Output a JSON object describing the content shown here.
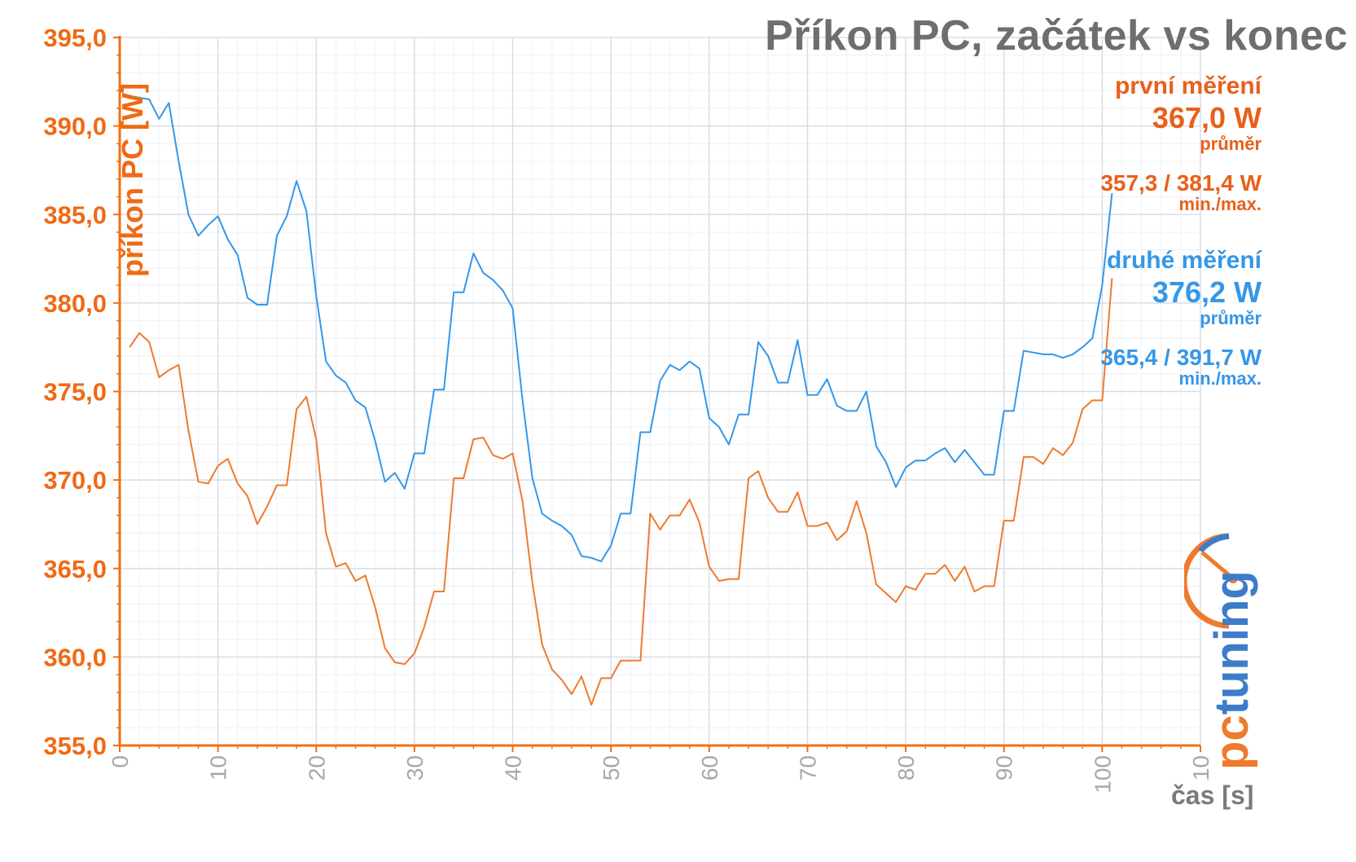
{
  "chart_data": {
    "type": "line",
    "title": "Příkon PC, začátek vs konec",
    "ylabel": "příkon PC [W]",
    "xlabel": "čas [s]",
    "xlim": [
      0,
      110
    ],
    "ylim": [
      355,
      395
    ],
    "x_ticks": [
      "0",
      "10",
      "20",
      "30",
      "40",
      "50",
      "60",
      "70",
      "80",
      "90",
      "100",
      "110"
    ],
    "y_ticks": [
      "355,0",
      "360,0",
      "365,0",
      "370,0",
      "375,0",
      "380,0",
      "385,0",
      "390,0",
      "395,0"
    ],
    "grid": true,
    "series": [
      {
        "name": "první měření",
        "color": "#ef7a2d",
        "values": [
          377.5,
          378.3,
          377.8,
          375.8,
          376.2,
          376.5,
          372.8,
          369.9,
          369.8,
          370.8,
          371.2,
          369.8,
          369.1,
          367.5,
          368.5,
          369.7,
          369.7,
          374.0,
          374.7,
          372.3,
          367.0,
          365.1,
          365.3,
          364.3,
          364.6,
          362.8,
          360.5,
          359.7,
          359.6,
          360.2,
          361.7,
          363.7,
          363.7,
          370.1,
          370.1,
          372.3,
          372.4,
          371.4,
          371.2,
          371.5,
          368.8,
          364.2,
          360.7,
          359.3,
          358.7,
          357.9,
          358.9,
          357.3,
          358.8,
          358.8,
          359.8,
          359.8,
          359.8,
          368.1,
          367.2,
          368.0,
          368.0,
          368.9,
          367.6,
          365.1,
          364.3,
          364.4,
          364.4,
          370.1,
          370.5,
          369.0,
          368.2,
          368.2,
          369.3,
          367.4,
          367.4,
          367.6,
          366.6,
          367.1,
          368.8,
          367.0,
          364.1,
          363.6,
          363.1,
          364.0,
          363.8,
          364.7,
          364.7,
          365.2,
          364.3,
          365.1,
          363.7,
          364.0,
          364.0,
          367.7,
          367.7,
          371.3,
          371.3,
          370.9,
          371.8,
          371.4,
          372.1,
          374.0,
          374.5,
          374.5,
          381.4
        ],
        "mean_label": "367,0 W",
        "mean_caption": "průměr",
        "minmax_label": "357,3 / 381,4 W",
        "minmax_caption": "min./max."
      },
      {
        "name": "druhé měření",
        "color": "#3597e8",
        "values": [
          391.7,
          391.6,
          391.5,
          390.4,
          391.3,
          388.0,
          385.0,
          383.8,
          384.4,
          384.9,
          383.6,
          382.7,
          380.3,
          379.9,
          379.9,
          383.8,
          384.9,
          386.9,
          385.2,
          380.4,
          376.7,
          375.9,
          375.5,
          374.5,
          374.1,
          372.2,
          369.9,
          370.4,
          369.5,
          371.5,
          371.5,
          375.1,
          375.1,
          380.6,
          380.6,
          382.8,
          381.7,
          381.3,
          380.7,
          379.7,
          374.5,
          370.1,
          368.1,
          367.7,
          367.4,
          366.9,
          365.7,
          365.6,
          365.4,
          366.3,
          368.1,
          368.1,
          372.7,
          372.7,
          375.6,
          376.5,
          376.2,
          376.7,
          376.3,
          373.5,
          373.0,
          372.0,
          373.7,
          373.7,
          377.8,
          377.0,
          375.5,
          375.5,
          377.9,
          374.8,
          374.8,
          375.7,
          374.2,
          373.9,
          373.9,
          375.0,
          371.9,
          371.0,
          369.6,
          370.7,
          371.1,
          371.1,
          371.5,
          371.8,
          371.0,
          371.7,
          371.0,
          370.3,
          370.3,
          373.9,
          373.9,
          377.3,
          377.2,
          377.1,
          377.1,
          376.9,
          377.1,
          377.5,
          378.0,
          381.0,
          386.2
        ],
        "mean_label": "376,2 W",
        "mean_caption": "průměr",
        "minmax_label": "365,4 / 391,7 W",
        "minmax_caption": "min./max."
      }
    ]
  },
  "legend": {
    "first": {
      "name": "první měření",
      "mean": "367,0 W",
      "mean_caption": "průměr",
      "minmax": "357,3 / 381,4 W",
      "minmax_caption": "min./max."
    },
    "second": {
      "name": "druhé měření",
      "mean": "376,2 W",
      "mean_caption": "průměr",
      "minmax": "365,4 / 391,7 W",
      "minmax_caption": "min./max."
    }
  },
  "logo": {
    "text": "pctuning",
    "colors": {
      "pc": "#ef7a2d",
      "tuning": "#3d7cc9"
    }
  },
  "colors": {
    "axis": "#f07010",
    "grid": "#d8dde6",
    "minor_grid": "#eef1f5",
    "title": "#6e6e6e"
  }
}
